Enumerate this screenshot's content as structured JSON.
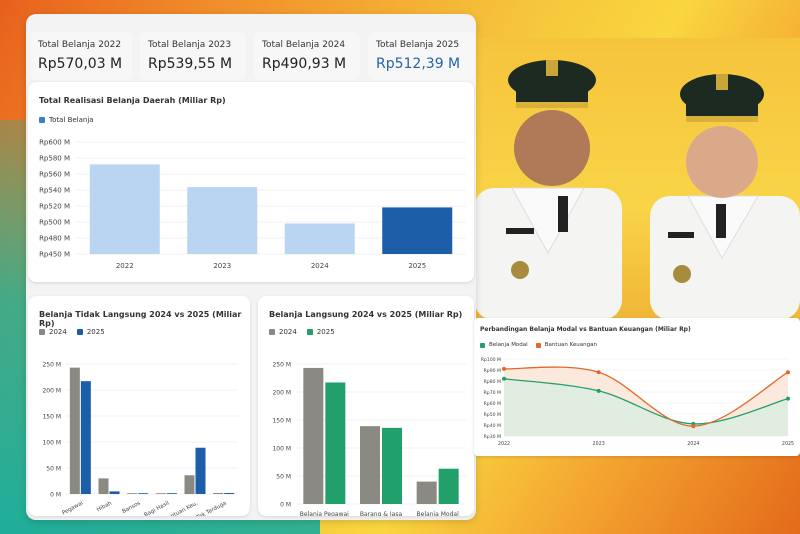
{
  "kpis": [
    {
      "label": "Total Belanja 2022",
      "value": "Rp570,03 M",
      "color": "#222222"
    },
    {
      "label": "Total Belanja 2023",
      "value": "Rp539,55 M",
      "color": "#222222"
    },
    {
      "label": "Total Belanja 2024",
      "value": "Rp490,93 M",
      "color": "#222222"
    },
    {
      "label": "Total Belanja 2025",
      "value": "Rp512,39 M",
      "color": "#2563a8"
    }
  ],
  "chart_data": [
    {
      "type": "bar",
      "title": "Total Realisasi Belanja Daerah (Miliar Rp)",
      "categories": [
        "2022",
        "2023",
        "2024",
        "2025"
      ],
      "series": [
        {
          "name": "Total Belanja",
          "values": [
            570.03,
            539.55,
            490.93,
            512.39
          ]
        }
      ],
      "bar_colors": [
        "#b9d5f2",
        "#b9d5f2",
        "#b9d5f2",
        "#1d5ea8"
      ],
      "legend_color": "#3b82c4",
      "yticks": [
        "Rp600 M",
        "Rp580 M",
        "Rp560 M",
        "Rp540 M",
        "Rp520 M",
        "Rp500 M",
        "Rp480 M",
        "Rp450 M"
      ],
      "ylim": [
        450,
        600
      ],
      "grid": true
    },
    {
      "type": "bar",
      "title": "Belanja Tidak Langsung 2024 vs 2025 (Miliar Rp)",
      "categories": [
        "Pegawai",
        "Hibah",
        "Bansos",
        "Bagi Hasil",
        "Bantuan Keu.",
        "Tak Terduga"
      ],
      "series": [
        {
          "name": "2024",
          "values": [
            243,
            30,
            1,
            1,
            36,
            2
          ],
          "color": "#8a8a82"
        },
        {
          "name": "2025",
          "values": [
            217,
            5,
            1,
            1,
            89,
            2
          ],
          "color": "#1d5ea8"
        }
      ],
      "yticks": [
        "250 M",
        "200 M",
        "150 M",
        "100 M",
        "50 M",
        "0 M"
      ],
      "ylim": [
        0,
        250
      ],
      "grid": true
    },
    {
      "type": "bar",
      "title": "Belanja Langsung 2024 vs 2025 (Miliar Rp)",
      "categories": [
        "Belanja Pegawai",
        "Barang & Jasa",
        "Belanja Modal"
      ],
      "series": [
        {
          "name": "2024",
          "values": [
            243,
            139,
            40
          ],
          "color": "#8a8a82"
        },
        {
          "name": "2025",
          "values": [
            217,
            136,
            63
          ],
          "color": "#22a06b"
        }
      ],
      "yticks": [
        "250 M",
        "200 M",
        "150 M",
        "100 M",
        "50 M",
        "0 M"
      ],
      "ylim": [
        0,
        250
      ],
      "grid": true
    },
    {
      "type": "area",
      "title": "Perbandingan Belanja Modal vs Bantuan Keuangan (Miliar Rp)",
      "categories": [
        "2022",
        "2023",
        "2024",
        "2025"
      ],
      "series": [
        {
          "name": "Belanja Modal",
          "values": [
            82,
            71,
            41,
            64
          ],
          "color": "#22a06b"
        },
        {
          "name": "Bantuan Keuangan",
          "values": [
            91,
            88,
            39,
            88
          ],
          "color": "#e2692a"
        }
      ],
      "yticks": [
        "Rp100 M",
        "Rp90 M",
        "Rp80 M",
        "Rp70 M",
        "Rp60 M",
        "Rp50 M",
        "Rp40 M",
        "Rp30 M"
      ],
      "ylim": [
        30,
        100
      ],
      "grid": true
    }
  ]
}
